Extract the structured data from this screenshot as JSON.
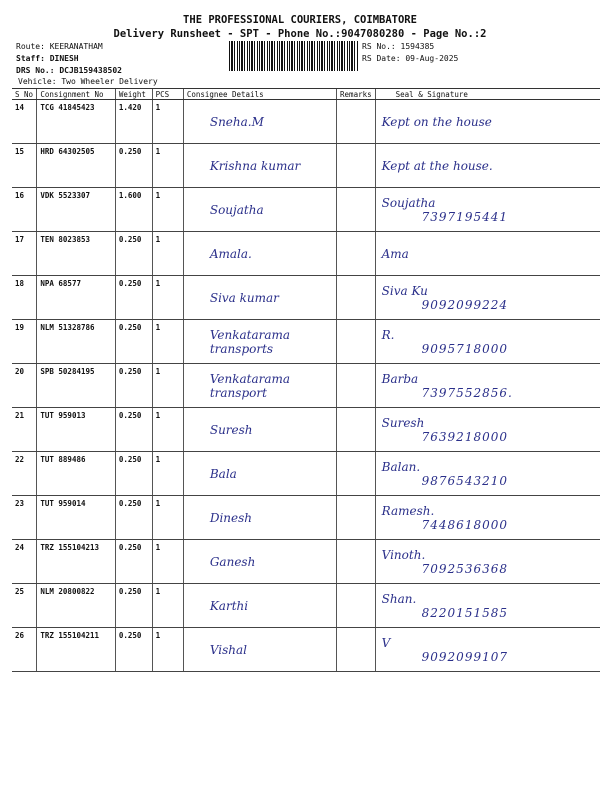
{
  "header": {
    "company": "THE PROFESSIONAL COURIERS, COIMBATORE",
    "subtitle": "Delivery Runsheet - SPT - Phone No.:9047080280 - Page No.:2",
    "route": "Route: KEERANATHAM",
    "staff": "Staff: DINESH",
    "drs": "DRS No.: DCJB159438502",
    "vehicle": "Vehicle: Two Wheeler Delivery",
    "rs_no": "RS No.: 1594385",
    "rs_date": "RS Date: 09-Aug-2025"
  },
  "columns": [
    "S No",
    "Consignment No",
    "Weight",
    "PCS",
    "Consignee Details",
    "Remarks",
    "Seal & Signature"
  ],
  "rows": [
    {
      "sno": "14",
      "cn": "TCG 41845423",
      "weight": "1.420",
      "pcs": "1",
      "consignee": "Sneha.M",
      "remarks": "",
      "signature": "Kept on the house",
      "phone": ""
    },
    {
      "sno": "15",
      "cn": "HRD 64302505",
      "weight": "0.250",
      "pcs": "1",
      "consignee": "Krishna kumar",
      "remarks": "",
      "signature": "Kept at the house.",
      "phone": ""
    },
    {
      "sno": "16",
      "cn": "VDK 5523307",
      "weight": "1.600",
      "pcs": "1",
      "consignee": "Soujatha",
      "remarks": "",
      "signature": "Soujatha",
      "phone": "7397195441"
    },
    {
      "sno": "17",
      "cn": "TEN 8023853",
      "weight": "0.250",
      "pcs": "1",
      "consignee": "Amala.",
      "remarks": "",
      "signature": "Ama",
      "phone": ""
    },
    {
      "sno": "18",
      "cn": "NPA 68577",
      "weight": "0.250",
      "pcs": "1",
      "consignee": "Siva kumar",
      "remarks": "",
      "signature": "Siva Ku",
      "phone": "9092099224"
    },
    {
      "sno": "19",
      "cn": "NLM 51328786",
      "weight": "0.250",
      "pcs": "1",
      "consignee": "Venkatarama transports",
      "remarks": "",
      "signature": "R.",
      "phone": "9095718000"
    },
    {
      "sno": "20",
      "cn": "SPB 50284195",
      "weight": "0.250",
      "pcs": "1",
      "consignee": "Venkatarama transport",
      "remarks": "",
      "signature": "Barba",
      "phone": "7397552856."
    },
    {
      "sno": "21",
      "cn": "TUT 959013",
      "weight": "0.250",
      "pcs": "1",
      "consignee": "Suresh",
      "remarks": "",
      "signature": "Suresh",
      "phone": "7639218000"
    },
    {
      "sno": "22",
      "cn": "TUT 889486",
      "weight": "0.250",
      "pcs": "1",
      "consignee": "Bala",
      "remarks": "",
      "signature": "Balan.",
      "phone": "9876543210"
    },
    {
      "sno": "23",
      "cn": "TUT 959014",
      "weight": "0.250",
      "pcs": "1",
      "consignee": "Dinesh",
      "remarks": "",
      "signature": "Ramesh.",
      "phone": "7448618000"
    },
    {
      "sno": "24",
      "cn": "TRZ 155104213",
      "weight": "0.250",
      "pcs": "1",
      "consignee": "Ganesh",
      "remarks": "",
      "signature": "Vinoth.",
      "phone": "7092536368"
    },
    {
      "sno": "25",
      "cn": "NLM 20800822",
      "weight": "0.250",
      "pcs": "1",
      "consignee": "Karthi",
      "remarks": "",
      "signature": "Shan.",
      "phone": "8220151585"
    },
    {
      "sno": "26",
      "cn": "TRZ 155104211",
      "weight": "0.250",
      "pcs": "1",
      "consignee": "Vishal",
      "remarks": "",
      "signature": "V",
      "phone": "9092099107"
    }
  ]
}
